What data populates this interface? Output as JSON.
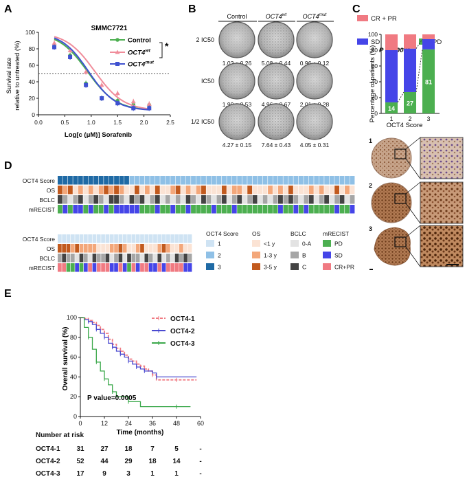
{
  "panel_labels": {
    "a": "A",
    "b": "B",
    "c": "C",
    "d": "D",
    "e": "E"
  },
  "colors": {
    "control": "#4caf50",
    "wt": "#f08c9a",
    "mut": "#3f51d0",
    "cr_pr": "#f07a82",
    "sd": "#4545e8",
    "pd": "#4caf50",
    "score1": "#cfe3f3",
    "score2": "#8fc0e6",
    "score3": "#1f6aa5",
    "os_lt1": "#fbe3d4",
    "os_1_3": "#f3a77a",
    "os_3_5": "#c25a1e",
    "bclc_0a": "#e3e3e3",
    "bclc_b": "#a6a6a6",
    "bclc_c": "#444444",
    "km1": "#f07a82",
    "km2": "#4a4ad0",
    "km3": "#3aa84a"
  },
  "chart_data": [
    {
      "id": "A",
      "type": "line",
      "title": "SMMC7721",
      "xlabel": "Log[c (μM)] Sorafenib",
      "ylabel": [
        "Survival rate",
        "relative to untreated (%)"
      ],
      "xlim": [
        0,
        2.5
      ],
      "ylim": [
        0,
        100
      ],
      "xticks": [
        "0.0",
        "0.5",
        "1.0",
        "1.5",
        "2.0",
        "2.5"
      ],
      "yticks": [
        "0",
        "20",
        "40",
        "60",
        "80",
        "100"
      ],
      "reference_line": 50,
      "x": [
        0.3,
        0.6,
        0.9,
        1.2,
        1.5,
        1.8,
        2.1
      ],
      "series": [
        {
          "name": "Control",
          "values": [
            83,
            72,
            38,
            20,
            17,
            12,
            12
          ],
          "marker": "circle",
          "fit": [
            1.5,
            100,
            0.93,
            1.6
          ]
        },
        {
          "name": "OCT4",
          "sup": "wt",
          "values": [
            87,
            78,
            52,
            36,
            26,
            16,
            13
          ],
          "marker": "triangle",
          "fit": [
            1.5,
            100,
            1.07,
            1.6
          ]
        },
        {
          "name": "OCT4",
          "sup": "mut",
          "values": [
            82,
            70,
            36,
            20,
            14,
            8,
            8
          ],
          "marker": "square",
          "fit": [
            1.5,
            100,
            0.95,
            1.7
          ]
        }
      ],
      "significance": "*"
    },
    {
      "id": "C",
      "type": "bar",
      "ylabel": "Percentage of patients (%)",
      "xlabel": "OCT4 Score",
      "categories": [
        "1",
        "2",
        "3"
      ],
      "ylim": [
        0,
        100
      ],
      "yticks": [
        "0",
        "20",
        "40",
        "60",
        "80",
        "100"
      ],
      "series": [
        {
          "name": "PD",
          "values": [
            14,
            27,
            81
          ]
        },
        {
          "name": "SD",
          "values": [
            66,
            55,
            13
          ]
        },
        {
          "name": "CR + PR",
          "values": [
            20,
            18,
            6
          ]
        }
      ],
      "bar_labels": [
        "14",
        "27",
        "81"
      ],
      "pvalue": "P < 0.0001"
    },
    {
      "id": "E",
      "type": "line",
      "xlabel": "Time (months)",
      "ylabel": "Overall survival (%)",
      "xlim": [
        0,
        60
      ],
      "ylim": [
        0,
        100
      ],
      "xticks": [
        "0",
        "12",
        "24",
        "36",
        "48",
        "60"
      ],
      "yticks": [
        "0",
        "20",
        "40",
        "60",
        "80",
        "100"
      ],
      "pvalue": "P value=0.0005",
      "series": [
        {
          "name": "OCT4-1",
          "points": [
            [
              0,
              100
            ],
            [
              2,
              99
            ],
            [
              4,
              97
            ],
            [
              6,
              95
            ],
            [
              8,
              92
            ],
            [
              10,
              88
            ],
            [
              12,
              84
            ],
            [
              14,
              78
            ],
            [
              16,
              73
            ],
            [
              18,
              69
            ],
            [
              20,
              66
            ],
            [
              22,
              62
            ],
            [
              24,
              58
            ],
            [
              26,
              56
            ],
            [
              28,
              53
            ],
            [
              30,
              51
            ],
            [
              32,
              48
            ],
            [
              34,
              46
            ],
            [
              36,
              42
            ],
            [
              38,
              37
            ],
            [
              48,
              37
            ],
            [
              58,
              37
            ]
          ]
        },
        {
          "name": "OCT4-2",
          "points": [
            [
              0,
              100
            ],
            [
              2,
              98
            ],
            [
              4,
              96
            ],
            [
              6,
              93
            ],
            [
              8,
              88
            ],
            [
              10,
              84
            ],
            [
              12,
              80
            ],
            [
              14,
              74
            ],
            [
              16,
              70
            ],
            [
              18,
              66
            ],
            [
              20,
              63
            ],
            [
              22,
              60
            ],
            [
              24,
              56
            ],
            [
              26,
              53
            ],
            [
              28,
              50
            ],
            [
              30,
              48
            ],
            [
              32,
              46
            ],
            [
              36,
              44
            ],
            [
              38,
              40
            ],
            [
              58,
              40
            ]
          ]
        },
        {
          "name": "OCT4-3",
          "points": [
            [
              0,
              100
            ],
            [
              2,
              90
            ],
            [
              4,
              80
            ],
            [
              6,
              68
            ],
            [
              8,
              55
            ],
            [
              10,
              46
            ],
            [
              12,
              38
            ],
            [
              14,
              32
            ],
            [
              16,
              25
            ],
            [
              18,
              20
            ],
            [
              24,
              15
            ],
            [
              30,
              10
            ],
            [
              48,
              10
            ],
            [
              55,
              10
            ]
          ]
        }
      ]
    }
  ],
  "panel_b": {
    "columns": [
      {
        "text": "Control",
        "sup": ""
      },
      {
        "text": "OCT4",
        "sup": "wt"
      },
      {
        "text": "OCT4",
        "sup": "mut"
      }
    ],
    "rows": [
      "2 IC50",
      "IC50",
      "1/2 IC50"
    ],
    "values": [
      [
        "1.02 ± 0.26",
        "5.08 ± 0.44",
        "0.96 ± 0.12"
      ],
      [
        "1.99 ± 0.53",
        "4.96 ± 0.67",
        "2.01 ± 0.28"
      ],
      [
        "4.27 ± 0.15",
        "7.64 ± 0.43",
        "4.05 ± 0.31"
      ]
    ]
  },
  "panel_c_ihc": {
    "labels": [
      "1",
      "2",
      "3"
    ]
  },
  "panel_d": {
    "rows1": [
      "OCT4 Score",
      "OS",
      "BCLC",
      "mRECIST"
    ],
    "rows2": [
      "OCT4 Score",
      "OS",
      "BCLC",
      "mRECIST"
    ],
    "heat1": {
      "score": "3333333333333322222222222222222222222222222222222222222222",
      "os": "2120101012121002010200120101200020110200010102000101002010",
      "bclc": "2101201210221021201201010210210120120120101212101201201201",
      "mrecist": "0101101001011111000100100100001000100000000100101000001001"
    },
    "heat2": {
      "score": "1111111111111111111111111111111",
      "os": "2221211110001121001200012100100",
      "bclc": "1211021021120120211021020102121",
      "mrecist": "2200101212221121021221121222211"
    },
    "legend": {
      "score_title": "OCT4 Score",
      "score_items": [
        "1",
        "2",
        "3"
      ],
      "os_title": "OS",
      "os_items": [
        "<1 y",
        "1-3 y",
        "3-5 y"
      ],
      "bclc_title": "BCLC",
      "bclc_items": [
        "0-A",
        "B",
        "C"
      ],
      "mrecist_title": "mRECIST",
      "mrecist_items": [
        "PD",
        "SD",
        "CR+PR"
      ]
    }
  },
  "panel_e_risk": {
    "title": "Number at risk",
    "rows": [
      {
        "label": "OCT4-1",
        "values": [
          "31",
          "27",
          "18",
          "7",
          "5",
          "-"
        ]
      },
      {
        "label": "OCT4-2",
        "values": [
          "52",
          "44",
          "29",
          "18",
          "14",
          "-"
        ]
      },
      {
        "label": "OCT4-3",
        "values": [
          "17",
          "9",
          "3",
          "1",
          "1",
          "-"
        ]
      }
    ]
  }
}
